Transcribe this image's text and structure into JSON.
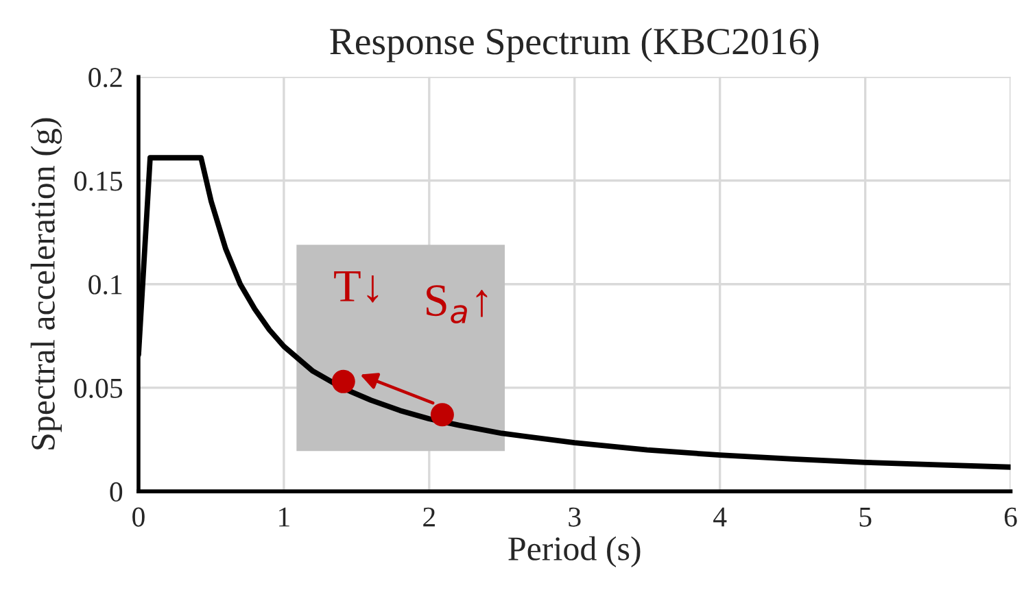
{
  "chart_data": {
    "type": "line",
    "title": "Response Spectrum (KBC2016)",
    "xlabel": "Period (s)",
    "ylabel": "Spectral acceleration (g)",
    "series": [
      {
        "color": "#000000",
        "x": [
          0,
          0.08,
          0.43,
          0.5,
          0.6,
          0.7,
          0.8,
          0.9,
          1.0,
          1.2,
          1.4,
          1.6,
          1.8,
          2.0,
          2.2,
          2.5,
          3.0,
          3.5,
          4.0,
          4.5,
          5.0,
          5.5,
          6.0
        ],
        "values": [
          0.066,
          0.161,
          0.161,
          0.14,
          0.117,
          0.1,
          0.088,
          0.078,
          0.07,
          0.058,
          0.05,
          0.044,
          0.039,
          0.035,
          0.032,
          0.028,
          0.0235,
          0.02,
          0.0175,
          0.0156,
          0.014,
          0.0128,
          0.0117
        ]
      },
      {
        "type": "scatter",
        "color": "#c00000",
        "x": [
          1.41,
          2.09
        ],
        "values": [
          0.053,
          0.037
        ]
      }
    ],
    "annotations": [
      {
        "text": "T↓",
        "x": 1.41,
        "y": 0.053
      },
      "S$_{a}$↑"
    ],
    "xlim": [
      0,
      6
    ],
    "xticks": [
      0,
      1,
      2,
      3,
      4,
      5,
      6
    ],
    "ylim": [
      0,
      0.2
    ],
    "yticks": [
      0,
      0.05,
      0.1,
      0.15,
      0.2
    ],
    "grid": true
  }
}
